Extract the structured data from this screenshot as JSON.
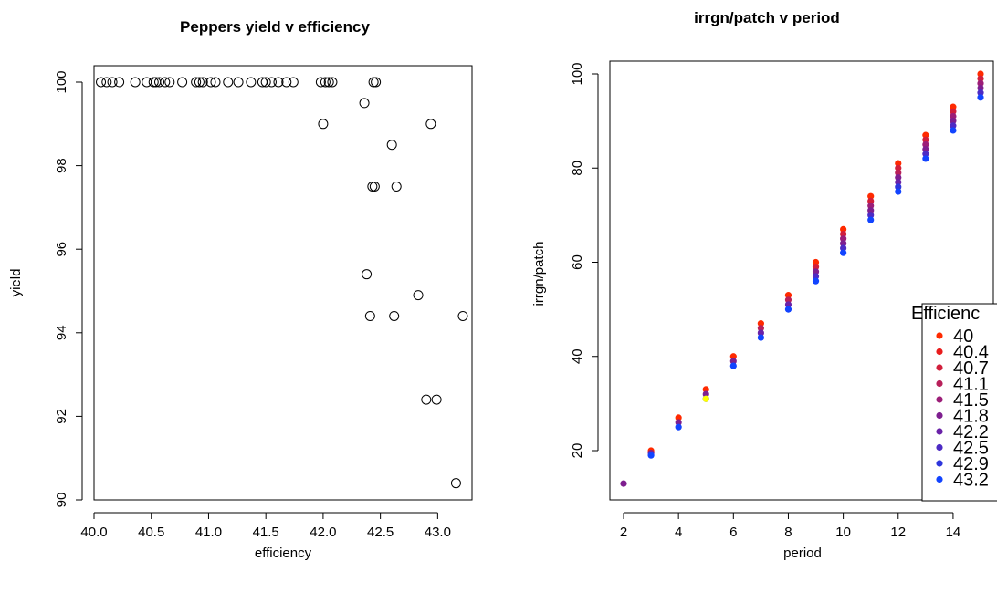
{
  "chart_data": [
    {
      "type": "scatter",
      "title": "Peppers yield v efficiency",
      "xlabel": "efficiency",
      "ylabel": "yield",
      "xlim": [
        40.0,
        43.3
      ],
      "ylim": [
        90,
        100
      ],
      "xticks": [
        "40.0",
        "40.5",
        "41.0",
        "41.5",
        "42.0",
        "42.5",
        "43.0"
      ],
      "yticks": [
        "90",
        "92",
        "94",
        "96",
        "98",
        "100"
      ],
      "marker": "open-circle",
      "grid": false,
      "points": [
        [
          40.06,
          100
        ],
        [
          40.11,
          100
        ],
        [
          40.16,
          100
        ],
        [
          40.22,
          100
        ],
        [
          40.36,
          100
        ],
        [
          40.46,
          100
        ],
        [
          40.52,
          100
        ],
        [
          40.54,
          100
        ],
        [
          40.57,
          100
        ],
        [
          40.62,
          100
        ],
        [
          40.66,
          100
        ],
        [
          40.77,
          100
        ],
        [
          40.89,
          100
        ],
        [
          40.92,
          100
        ],
        [
          40.95,
          100
        ],
        [
          41.02,
          100
        ],
        [
          41.06,
          100
        ],
        [
          41.17,
          100
        ],
        [
          41.26,
          100
        ],
        [
          41.37,
          100
        ],
        [
          41.47,
          100
        ],
        [
          41.5,
          100
        ],
        [
          41.55,
          100
        ],
        [
          41.61,
          100
        ],
        [
          41.68,
          100
        ],
        [
          41.74,
          100
        ],
        [
          41.98,
          100
        ],
        [
          42.02,
          100
        ],
        [
          42.05,
          100
        ],
        [
          42.08,
          100
        ],
        [
          42.44,
          100
        ],
        [
          42.46,
          100
        ],
        [
          42.0,
          99.0
        ],
        [
          42.94,
          99.0
        ],
        [
          42.36,
          99.5
        ],
        [
          42.6,
          98.5
        ],
        [
          42.43,
          97.5
        ],
        [
          42.45,
          97.5
        ],
        [
          42.64,
          97.5
        ],
        [
          42.38,
          95.4
        ],
        [
          42.83,
          94.9
        ],
        [
          42.41,
          94.4
        ],
        [
          42.62,
          94.4
        ],
        [
          43.22,
          94.4
        ],
        [
          42.9,
          92.4
        ],
        [
          42.99,
          92.4
        ],
        [
          43.16,
          90.4
        ]
      ]
    },
    {
      "type": "scatter",
      "title": "irrgn/patch v period",
      "xlabel": "period",
      "ylabel": "irrgn/patch",
      "xlim": [
        1.7,
        15.3
      ],
      "ylim": [
        10,
        102
      ],
      "xticks": [
        "2",
        "4",
        "6",
        "8",
        "10",
        "12",
        "14"
      ],
      "yticks": [
        "20",
        "40",
        "60",
        "80",
        "100"
      ],
      "marker": "filled-circle",
      "grid": false,
      "legend_title": "Efficienc",
      "legend_position": "bottom-right",
      "legend": [
        {
          "label": "40",
          "color": "#ff2a00"
        },
        {
          "label": "40.4",
          "color": "#e91c1c"
        },
        {
          "label": "40.7",
          "color": "#d11f3c"
        },
        {
          "label": "41.1",
          "color": "#b8205a"
        },
        {
          "label": "41.5",
          "color": "#9c1e78"
        },
        {
          "label": "41.8",
          "color": "#7e1f8f"
        },
        {
          "label": "42.2",
          "color": "#6a22a8"
        },
        {
          "label": "42.5",
          "color": "#4d2bc4"
        },
        {
          "label": "42.9",
          "color": "#2e36dc"
        },
        {
          "label": "43.2",
          "color": "#1244ff"
        }
      ],
      "series": [
        {
          "x": 2,
          "values": [
            13
          ]
        },
        {
          "x": 3,
          "values": [
            20,
            19.5,
            19
          ]
        },
        {
          "x": 4,
          "values": [
            27,
            26,
            25
          ]
        },
        {
          "x": 5,
          "values": [
            33,
            32,
            31
          ]
        },
        {
          "x": 6,
          "values": [
            40,
            39,
            38
          ]
        },
        {
          "x": 7,
          "values": [
            47,
            46,
            45,
            44
          ]
        },
        {
          "x": 8,
          "values": [
            53,
            52,
            51,
            50
          ]
        },
        {
          "x": 9,
          "values": [
            60,
            59,
            58,
            57,
            56
          ]
        },
        {
          "x": 10,
          "values": [
            67,
            66,
            65,
            64,
            63,
            62
          ]
        },
        {
          "x": 11,
          "values": [
            74,
            73,
            72,
            71,
            70,
            69
          ]
        },
        {
          "x": 12,
          "values": [
            81,
            80,
            79,
            78,
            77,
            76,
            75
          ]
        },
        {
          "x": 13,
          "values": [
            87,
            86,
            85,
            84,
            83,
            82
          ]
        },
        {
          "x": 14,
          "values": [
            93,
            92,
            91,
            90,
            89,
            88
          ]
        },
        {
          "x": 15,
          "values": [
            100,
            99,
            98,
            97,
            96,
            95
          ]
        }
      ],
      "highlight": {
        "x": 5,
        "y": 31,
        "color": "#ffff00"
      }
    }
  ]
}
